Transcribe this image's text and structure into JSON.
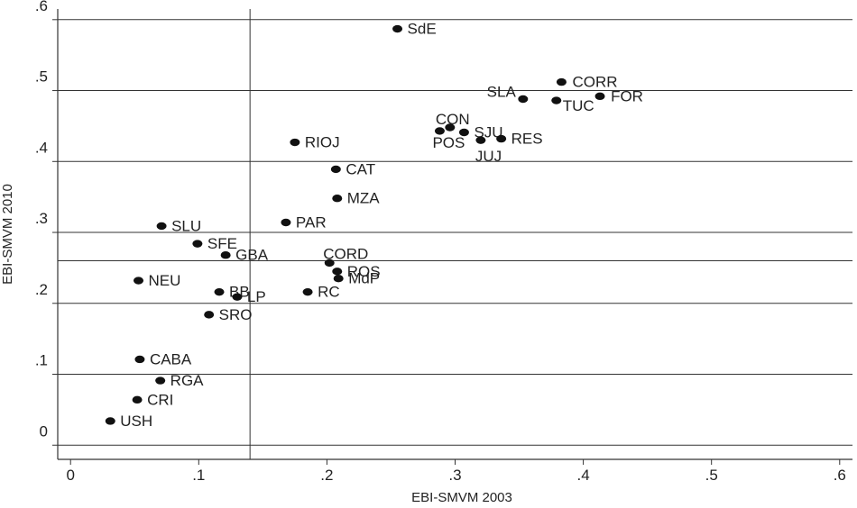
{
  "chart_data": {
    "type": "scatter",
    "title": "",
    "xlabel": "EBI-SMVM 2003",
    "ylabel": "EBI-SMVM 2010",
    "xlim": [
      -0.01,
      0.61
    ],
    "ylim": [
      -0.02,
      0.615
    ],
    "x_ticks": [
      0,
      0.1,
      0.2,
      0.3,
      0.4,
      0.5,
      0.6
    ],
    "x_tick_labels": [
      "0",
      ".1",
      ".2",
      ".3",
      ".4",
      ".5",
      ".6"
    ],
    "y_ticks": [
      0,
      0.1,
      0.2,
      0.3,
      0.4,
      0.5,
      0.6
    ],
    "y_tick_labels": [
      "0",
      ".1",
      ".2",
      ".3",
      ".4",
      ".5",
      ".6"
    ],
    "horizontal_lines": [
      0.0,
      0.1,
      0.2,
      0.26,
      0.3,
      0.4,
      0.5,
      0.6
    ],
    "vertical_lines": [
      0.14
    ],
    "points": [
      {
        "label": "SdE",
        "x": 0.255,
        "y": 0.587
      },
      {
        "label": "CORR",
        "x": 0.383,
        "y": 0.512
      },
      {
        "label": "SLA",
        "x": 0.353,
        "y": 0.488
      },
      {
        "label": "TUC",
        "x": 0.379,
        "y": 0.486
      },
      {
        "label": "FOR",
        "x": 0.413,
        "y": 0.492
      },
      {
        "label": "CON",
        "x": 0.296,
        "y": 0.448
      },
      {
        "label": "SJU",
        "x": 0.307,
        "y": 0.441
      },
      {
        "label": "POS",
        "x": 0.288,
        "y": 0.443
      },
      {
        "label": "JUJ",
        "x": 0.32,
        "y": 0.43
      },
      {
        "label": "RES",
        "x": 0.336,
        "y": 0.432
      },
      {
        "label": "RIOJ",
        "x": 0.175,
        "y": 0.427
      },
      {
        "label": "CAT",
        "x": 0.207,
        "y": 0.389
      },
      {
        "label": "MZA",
        "x": 0.208,
        "y": 0.348
      },
      {
        "label": "PAR",
        "x": 0.168,
        "y": 0.314
      },
      {
        "label": "SLU",
        "x": 0.071,
        "y": 0.309
      },
      {
        "label": "SFE",
        "x": 0.099,
        "y": 0.284
      },
      {
        "label": "GBA",
        "x": 0.121,
        "y": 0.268
      },
      {
        "label": "CORD",
        "x": 0.202,
        "y": 0.257
      },
      {
        "label": "ROS",
        "x": 0.208,
        "y": 0.245
      },
      {
        "label": "MdP",
        "x": 0.209,
        "y": 0.235
      },
      {
        "label": "NEU",
        "x": 0.053,
        "y": 0.232
      },
      {
        "label": "BB",
        "x": 0.116,
        "y": 0.216
      },
      {
        "label": "RC",
        "x": 0.185,
        "y": 0.216
      },
      {
        "label": "LP",
        "x": 0.13,
        "y": 0.209
      },
      {
        "label": "SRO",
        "x": 0.108,
        "y": 0.184
      },
      {
        "label": "CABA",
        "x": 0.054,
        "y": 0.121
      },
      {
        "label": "RGA",
        "x": 0.07,
        "y": 0.091
      },
      {
        "label": "CRI",
        "x": 0.052,
        "y": 0.064
      },
      {
        "label": "USH",
        "x": 0.031,
        "y": 0.034
      }
    ],
    "grid": false,
    "legend": "none"
  }
}
